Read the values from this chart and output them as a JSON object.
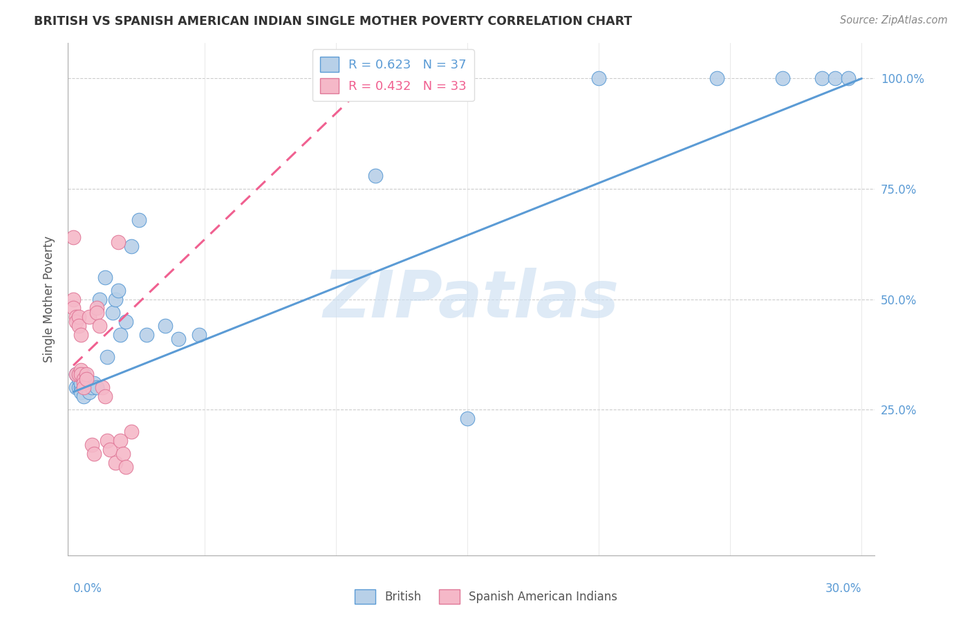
{
  "title": "BRITISH VS SPANISH AMERICAN INDIAN SINGLE MOTHER POVERTY CORRELATION CHART",
  "source": "Source: ZipAtlas.com",
  "ylabel": "Single Mother Poverty",
  "watermark": "ZIPatlas",
  "british_R": 0.623,
  "british_N": 37,
  "spanish_R": 0.432,
  "spanish_N": 33,
  "ytick_labels": [
    "25.0%",
    "50.0%",
    "75.0%",
    "100.0%"
  ],
  "ytick_values": [
    0.25,
    0.5,
    0.75,
    1.0
  ],
  "xtick_values": [
    0.0,
    0.05,
    0.1,
    0.15,
    0.2,
    0.25,
    0.3
  ],
  "british_color": "#b8d0e8",
  "spanish_color": "#f5b8c8",
  "british_line_color": "#5b9bd5",
  "spanish_line_color": "#f06090",
  "axis_color": "#5b9bd5",
  "title_color": "#333333",
  "xlim_min": -0.002,
  "xlim_max": 0.305,
  "ylim_min": -0.08,
  "ylim_max": 1.08,
  "british_x": [
    0.001,
    0.001,
    0.002,
    0.002,
    0.003,
    0.003,
    0.003,
    0.004,
    0.004,
    0.005,
    0.005,
    0.006,
    0.007,
    0.008,
    0.009,
    0.01,
    0.012,
    0.013,
    0.015,
    0.016,
    0.017,
    0.018,
    0.02,
    0.022,
    0.025,
    0.028,
    0.035,
    0.04,
    0.048,
    0.115,
    0.15,
    0.2,
    0.245,
    0.27,
    0.285,
    0.29,
    0.295
  ],
  "british_y": [
    0.33,
    0.3,
    0.3,
    0.32,
    0.3,
    0.31,
    0.29,
    0.33,
    0.28,
    0.31,
    0.3,
    0.29,
    0.3,
    0.31,
    0.3,
    0.5,
    0.55,
    0.37,
    0.47,
    0.5,
    0.52,
    0.42,
    0.45,
    0.62,
    0.68,
    0.42,
    0.44,
    0.41,
    0.42,
    0.78,
    0.23,
    1.0,
    1.0,
    1.0,
    1.0,
    1.0,
    1.0
  ],
  "spanish_x": [
    0.0,
    0.0,
    0.0,
    0.001,
    0.001,
    0.001,
    0.002,
    0.002,
    0.002,
    0.003,
    0.003,
    0.003,
    0.004,
    0.004,
    0.004,
    0.005,
    0.005,
    0.006,
    0.007,
    0.008,
    0.009,
    0.009,
    0.01,
    0.011,
    0.012,
    0.013,
    0.014,
    0.016,
    0.017,
    0.018,
    0.019,
    0.02,
    0.022
  ],
  "spanish_y": [
    0.64,
    0.5,
    0.48,
    0.46,
    0.45,
    0.33,
    0.46,
    0.44,
    0.33,
    0.42,
    0.34,
    0.33,
    0.32,
    0.31,
    0.3,
    0.33,
    0.32,
    0.46,
    0.17,
    0.15,
    0.48,
    0.47,
    0.44,
    0.3,
    0.28,
    0.18,
    0.16,
    0.13,
    0.63,
    0.18,
    0.15,
    0.12,
    0.2
  ],
  "british_line_x": [
    0.0,
    0.3
  ],
  "british_line_y": [
    0.29,
    1.0
  ],
  "spanish_line_x": [
    0.0,
    0.105
  ],
  "spanish_line_y": [
    0.35,
    0.95
  ]
}
